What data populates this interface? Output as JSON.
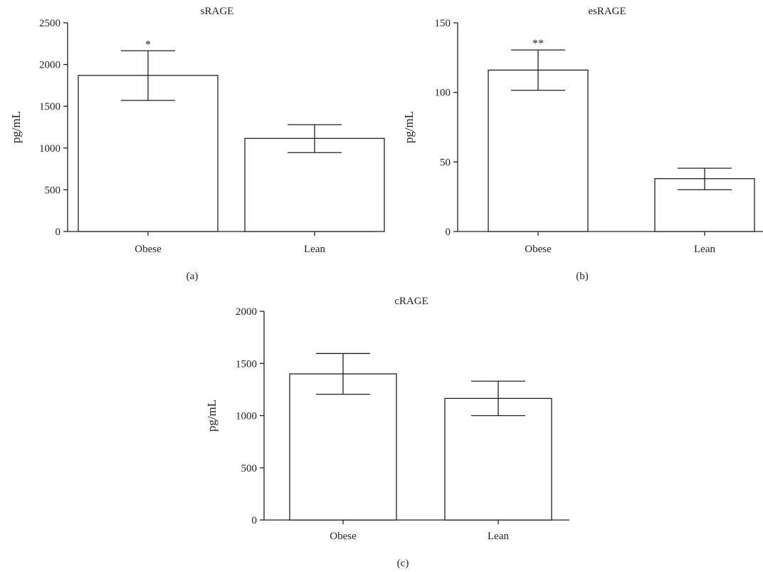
{
  "figure": {
    "panels": [
      "(a)",
      "(b)",
      "(c)"
    ]
  },
  "colors": {
    "ink": "#231f20",
    "bar_fill": "#ffffff"
  },
  "chart_data": [
    {
      "type": "bar",
      "title": "sRAGE",
      "ylabel": "pg/mL",
      "xlabel": "",
      "categories": [
        "Obese",
        "Lean"
      ],
      "values": [
        1870,
        1115
      ],
      "error_plus": [
        295,
        165
      ],
      "error_minus": [
        300,
        170
      ],
      "annotations": [
        "*",
        ""
      ],
      "ylim": [
        0,
        2500
      ],
      "yticks": [
        "0",
        "500",
        "1000",
        "1500",
        "2000",
        "2500"
      ],
      "grid": false,
      "legend": "none"
    },
    {
      "type": "bar",
      "title": "esRAGE",
      "ylabel": "pg/mL",
      "xlabel": "",
      "categories": [
        "Obese",
        "Lean"
      ],
      "values": [
        116,
        38
      ],
      "error_plus": [
        14.5,
        7.5
      ],
      "error_minus": [
        14.5,
        8
      ],
      "annotations": [
        "**",
        ""
      ],
      "ylim": [
        0,
        150
      ],
      "yticks": [
        "0",
        "50",
        "100",
        "150"
      ],
      "grid": false,
      "legend": "none"
    },
    {
      "type": "bar",
      "title": "cRAGE",
      "ylabel": "pg/mL",
      "xlabel": "",
      "categories": [
        "Obese",
        "Lean"
      ],
      "values": [
        1400,
        1165
      ],
      "error_plus": [
        195,
        165
      ],
      "error_minus": [
        195,
        165
      ],
      "annotations": [
        "",
        ""
      ],
      "ylim": [
        0,
        2000
      ],
      "yticks": [
        "0",
        "500",
        "1000",
        "1500",
        "2000"
      ],
      "grid": false,
      "legend": "none"
    }
  ]
}
